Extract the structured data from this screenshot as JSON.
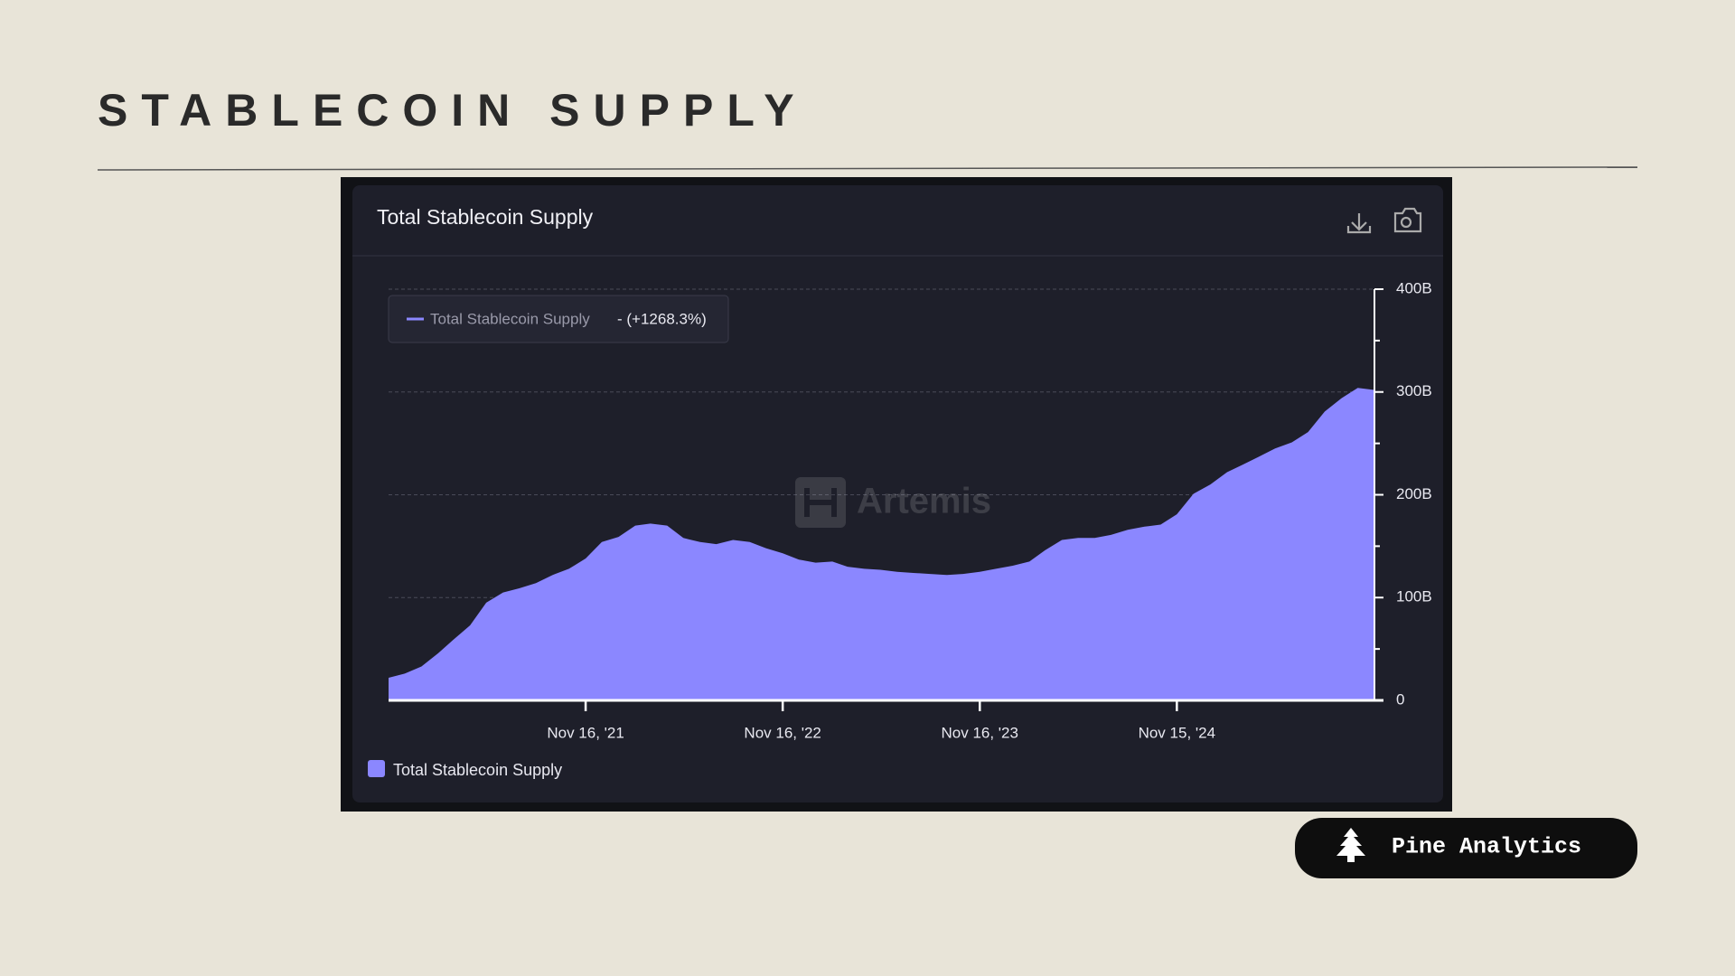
{
  "slide": {
    "title": "STABLECOIN SUPPLY",
    "brand": "Pine Analytics"
  },
  "chart_data": {
    "type": "area",
    "title": "Total Stablecoin Supply",
    "watermark": "Artemis",
    "change_label": "- (+1268.3%)",
    "x": [
      "2020-11-16",
      "2020-12-16",
      "2021-01-16",
      "2021-02-16",
      "2021-03-16",
      "2021-04-16",
      "2021-05-16",
      "2021-06-16",
      "2021-07-16",
      "2021-08-16",
      "2021-09-16",
      "2021-10-16",
      "2021-11-16",
      "2021-12-16",
      "2022-01-16",
      "2022-02-16",
      "2022-03-16",
      "2022-04-16",
      "2022-05-16",
      "2022-06-16",
      "2022-07-16",
      "2022-08-16",
      "2022-09-16",
      "2022-10-16",
      "2022-11-16",
      "2022-12-16",
      "2023-01-16",
      "2023-02-16",
      "2023-03-16",
      "2023-04-16",
      "2023-05-16",
      "2023-06-16",
      "2023-07-16",
      "2023-08-16",
      "2023-09-16",
      "2023-10-16",
      "2023-11-16",
      "2023-12-16",
      "2024-01-16",
      "2024-02-16",
      "2024-03-16",
      "2024-04-16",
      "2024-05-16",
      "2024-06-16",
      "2024-07-16",
      "2024-08-16",
      "2024-09-16",
      "2024-10-16",
      "2024-11-15",
      "2024-12-16",
      "2025-01-16",
      "2025-02-16",
      "2025-03-16",
      "2025-04-16",
      "2025-05-16",
      "2025-06-16",
      "2025-07-16",
      "2025-08-16",
      "2025-09-16",
      "2025-10-16",
      "2025-11-16"
    ],
    "series": [
      {
        "name": "Total Stablecoin Supply",
        "color": "#8b87ff",
        "values": [
          22,
          26,
          33,
          46,
          59,
          73,
          95,
          105,
          109,
          114,
          122,
          128,
          138,
          154,
          159,
          170,
          172,
          170,
          158,
          154,
          152,
          156,
          154,
          148,
          143,
          137,
          134,
          135,
          130,
          128,
          127,
          125,
          124,
          123,
          122,
          123,
          125,
          128,
          131,
          135,
          146,
          156,
          158,
          158,
          161,
          166,
          169,
          171,
          181,
          201,
          210,
          222,
          229,
          237,
          245,
          251,
          261,
          281,
          294,
          304,
          302
        ]
      }
    ],
    "xlim": [
      "2020-11-16",
      "2025-11-16"
    ],
    "xticks": [
      {
        "value": "2021-11-16",
        "label": "Nov 16, '21"
      },
      {
        "value": "2022-11-16",
        "label": "Nov 16, '22"
      },
      {
        "value": "2023-11-16",
        "label": "Nov 16, '23"
      },
      {
        "value": "2024-11-15",
        "label": "Nov 15, '24"
      }
    ],
    "ylim": [
      0,
      400
    ],
    "yticks": [
      0,
      {
        "value": 100,
        "label": "100B"
      },
      {
        "value": 200,
        "label": "200B"
      },
      {
        "value": 300,
        "label": "300B"
      },
      {
        "value": 400,
        "label": "400B"
      }
    ],
    "minor_yticks": [
      50,
      150,
      250,
      350
    ],
    "grid": true
  }
}
